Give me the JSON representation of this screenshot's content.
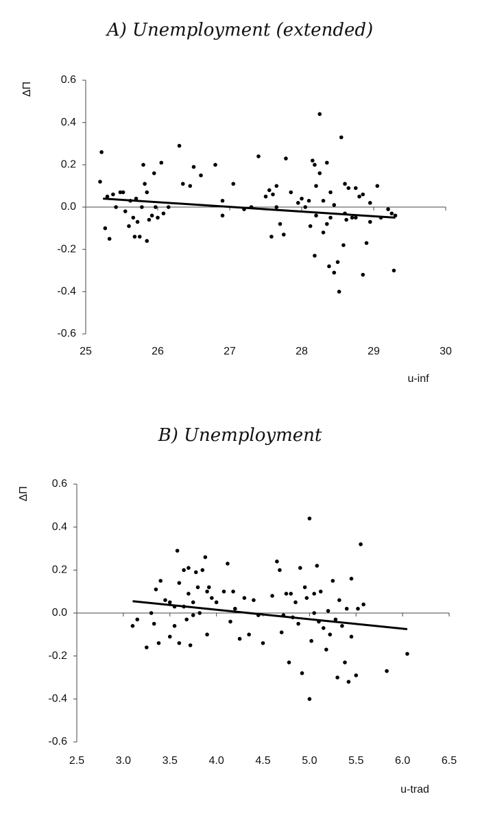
{
  "chart_data": [
    {
      "type": "scatter",
      "title": "A) Unemployment (extended)",
      "x_label": "u-inf",
      "y_label": "ΔΠ",
      "color": "#000000",
      "xlim": [
        25,
        30
      ],
      "xticks": [
        25,
        26,
        27,
        28,
        29,
        30
      ],
      "ylim": [
        -0.6,
        0.6
      ],
      "yticks": [
        0.6,
        0.4,
        0.2,
        {
          "value": 0,
          "label": "0.0"
        },
        -0.2,
        -0.4,
        -0.6
      ],
      "x": [
        25.22,
        25.2,
        25.3,
        25.27,
        25.33,
        25.38,
        25.42,
        25.48,
        25.52,
        25.55,
        25.6,
        25.62,
        25.66,
        25.68,
        25.7,
        25.72,
        25.75,
        25.78,
        25.8,
        25.82,
        25.85,
        25.85,
        25.88,
        25.92,
        25.95,
        25.97,
        26.0,
        26.05,
        26.08,
        26.15,
        26.3,
        26.35,
        26.45,
        26.5,
        26.6,
        26.8,
        26.9,
        26.9,
        27.05,
        27.2,
        27.3,
        27.4,
        27.5,
        27.55,
        27.58,
        27.6,
        27.65,
        27.65,
        27.7,
        27.75,
        27.78,
        27.85,
        27.95,
        28.05,
        28.1,
        28.12,
        28.15,
        28.18,
        28.18,
        28.2,
        28.25,
        28.25,
        28.3,
        28.3,
        28.35,
        28.38,
        28.4,
        28.45,
        28.5,
        28.52,
        28.55,
        28.58,
        28.6,
        28.62,
        28.65,
        28.7,
        28.75,
        28.85,
        28.85,
        28.9,
        28.95,
        29.05,
        29.1,
        29.25,
        29.28,
        29.3,
        28.0,
        28.4,
        28.2,
        28.35,
        28.45,
        28.6,
        28.75,
        28.8,
        28.95,
        29.2
      ],
      "values": [
        0.26,
        0.12,
        0.05,
        -0.1,
        -0.15,
        0.06,
        0.0,
        0.07,
        0.07,
        -0.02,
        -0.09,
        0.03,
        -0.05,
        -0.14,
        0.04,
        -0.07,
        -0.14,
        0.0,
        0.2,
        0.11,
        -0.16,
        0.07,
        -0.06,
        -0.04,
        0.16,
        0.0,
        -0.05,
        0.21,
        -0.03,
        0.0,
        0.29,
        0.11,
        0.1,
        0.19,
        0.15,
        0.2,
        0.03,
        -0.04,
        0.11,
        -0.01,
        0.0,
        0.24,
        0.05,
        0.08,
        -0.14,
        0.06,
        0.1,
        0.0,
        -0.08,
        -0.13,
        0.23,
        0.07,
        0.02,
        0.0,
        0.03,
        -0.09,
        0.22,
        0.2,
        -0.23,
        0.1,
        0.16,
        0.44,
        0.03,
        -0.12,
        0.21,
        -0.28,
        -0.05,
        -0.31,
        -0.26,
        -0.4,
        0.33,
        -0.18,
        0.11,
        -0.06,
        0.09,
        -0.05,
        0.09,
        -0.32,
        0.06,
        -0.17,
        0.02,
        0.1,
        -0.05,
        -0.03,
        -0.3,
        -0.04,
        0.04,
        0.07,
        -0.04,
        -0.08,
        0.01,
        -0.03,
        -0.05,
        0.05,
        -0.07,
        -0.01
      ],
      "trend": {
        "x": [
          25.24,
          29.3
        ],
        "values": [
          0.04,
          -0.05
        ]
      }
    },
    {
      "type": "scatter",
      "title": "B) Unemployment",
      "x_label": "u-trad",
      "y_label": "ΔΠ",
      "color": "#000000",
      "xlim": [
        2.5,
        6.5
      ],
      "xticks": [
        2.5,
        {
          "value": 3,
          "label": "3.0"
        },
        3.5,
        {
          "value": 4,
          "label": "4.0"
        },
        4.5,
        {
          "value": 5,
          "label": "5.0"
        },
        5.5,
        {
          "value": 6,
          "label": "6.0"
        },
        6.5
      ],
      "ylim": [
        -0.6,
        0.6
      ],
      "yticks": [
        0.6,
        0.4,
        0.2,
        {
          "value": 0,
          "label": "0.0"
        },
        -0.2,
        -0.4,
        -0.6
      ],
      "x": [
        3.1,
        3.15,
        3.25,
        3.3,
        3.33,
        3.35,
        3.38,
        3.4,
        3.45,
        3.5,
        3.5,
        3.55,
        3.55,
        3.58,
        3.6,
        3.6,
        3.65,
        3.65,
        3.68,
        3.7,
        3.7,
        3.72,
        3.75,
        3.75,
        3.78,
        3.8,
        3.82,
        3.85,
        3.88,
        3.9,
        3.9,
        3.92,
        3.95,
        4.0,
        4.08,
        4.12,
        4.15,
        4.18,
        4.2,
        4.25,
        4.3,
        4.35,
        4.4,
        4.45,
        4.5,
        4.6,
        4.65,
        4.68,
        4.7,
        4.72,
        4.75,
        4.78,
        4.8,
        4.82,
        4.85,
        4.88,
        4.9,
        4.92,
        4.95,
        4.97,
        5.0,
        5.0,
        5.02,
        5.05,
        5.05,
        5.08,
        5.1,
        5.12,
        5.15,
        5.18,
        5.2,
        5.22,
        5.25,
        5.28,
        5.3,
        5.32,
        5.35,
        5.38,
        5.4,
        5.42,
        5.45,
        5.45,
        5.5,
        5.52,
        5.55,
        5.58,
        5.83,
        6.05
      ],
      "values": [
        -0.06,
        -0.03,
        -0.16,
        0.0,
        -0.05,
        0.11,
        -0.14,
        0.15,
        0.06,
        -0.11,
        0.05,
        0.03,
        -0.06,
        0.29,
        -0.14,
        0.14,
        0.2,
        0.03,
        -0.03,
        0.21,
        0.09,
        -0.15,
        -0.01,
        0.05,
        0.19,
        0.12,
        0.0,
        0.2,
        0.26,
        -0.1,
        0.1,
        0.12,
        0.07,
        0.05,
        0.1,
        0.23,
        -0.04,
        0.1,
        0.02,
        -0.12,
        0.07,
        -0.1,
        0.06,
        -0.01,
        -0.14,
        0.08,
        0.24,
        0.2,
        -0.09,
        -0.01,
        0.09,
        -0.23,
        0.09,
        -0.02,
        0.05,
        -0.05,
        0.21,
        -0.28,
        0.12,
        0.07,
        0.44,
        -0.4,
        -0.13,
        0.0,
        0.09,
        0.22,
        -0.04,
        0.1,
        -0.07,
        -0.17,
        0.01,
        -0.1,
        0.15,
        -0.03,
        -0.3,
        0.06,
        -0.06,
        -0.23,
        0.02,
        -0.32,
        0.16,
        -0.11,
        -0.29,
        0.02,
        0.32,
        0.04,
        -0.27,
        -0.19
      ],
      "trend": {
        "x": [
          3.1,
          6.05
        ],
        "values": [
          0.055,
          -0.075
        ]
      }
    }
  ]
}
